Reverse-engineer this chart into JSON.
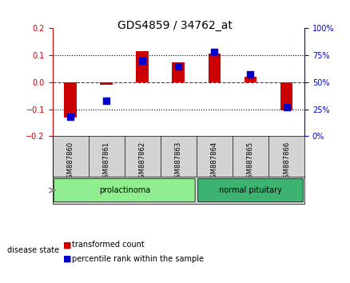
{
  "title": "GDS4859 / 34762_at",
  "samples": [
    "GSM887860",
    "GSM887861",
    "GSM887862",
    "GSM887863",
    "GSM887864",
    "GSM887865",
    "GSM887866"
  ],
  "transformed_count": [
    -0.13,
    -0.01,
    0.115,
    0.075,
    0.105,
    0.02,
    -0.105
  ],
  "percentile_rank": [
    18,
    33,
    70,
    65,
    78,
    57,
    27
  ],
  "groups": [
    {
      "label": "prolactinoma",
      "indices": [
        0,
        1,
        2,
        3
      ],
      "color": "#90ee90"
    },
    {
      "label": "normal pituitary",
      "indices": [
        4,
        5,
        6
      ],
      "color": "#3cb371"
    }
  ],
  "ylim_left": [
    -0.2,
    0.2
  ],
  "ylim_right": [
    0,
    100
  ],
  "yticks_left": [
    -0.2,
    -0.1,
    0.0,
    0.1,
    0.2
  ],
  "yticks_right": [
    0,
    25,
    50,
    75,
    100
  ],
  "bar_color_red": "#cc0000",
  "bar_color_blue": "#0000cc",
  "background_color": "#ffffff",
  "plot_bg": "#ffffff",
  "bar_width": 0.35,
  "dot_size": 40,
  "legend_labels": [
    "transformed count",
    "percentile rank within the sample"
  ],
  "disease_state_label": "disease state",
  "hlines_dotted": [
    -0.1,
    0.1
  ],
  "hline_dashed": 0.0
}
